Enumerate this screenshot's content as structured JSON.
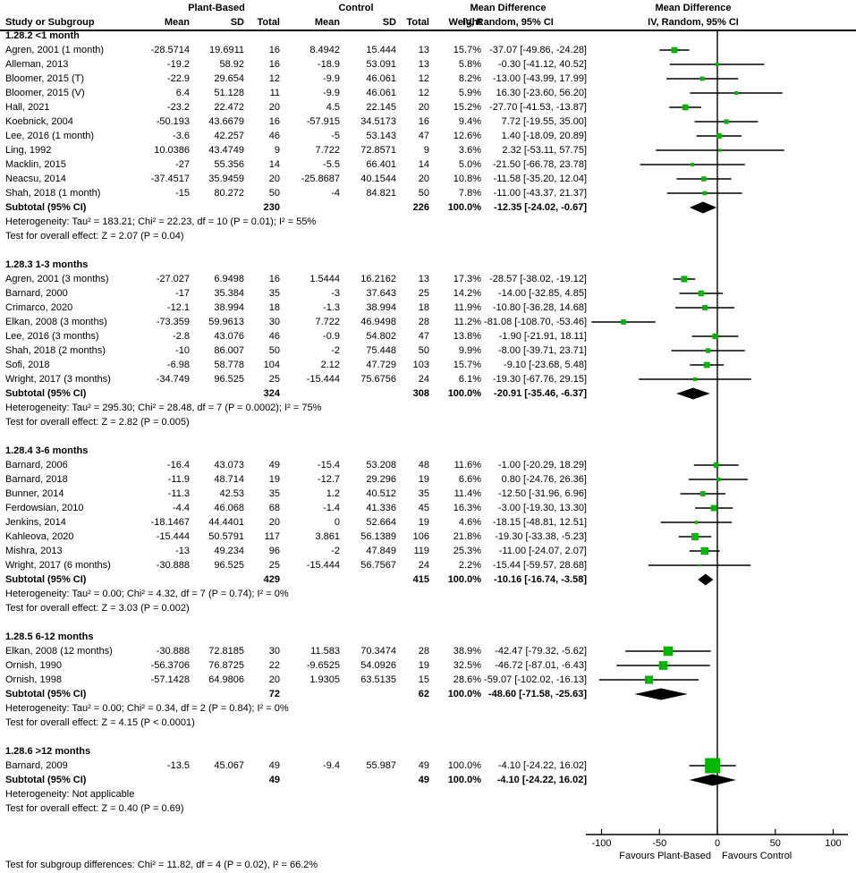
{
  "chart_data": {
    "type": "forest",
    "marker_color": "#00b800",
    "diamond_color": "#000000",
    "header": {
      "study_col": "Study or Subgroup",
      "group1": "Plant-Based",
      "group2": "Control",
      "mean": "Mean",
      "sd": "SD",
      "total": "Total",
      "weight": "Weight",
      "md_title": "Mean Difference",
      "md_sub": "IV, Random, 95% CI"
    },
    "axis": {
      "ticks": [
        -100,
        -50,
        0,
        50,
        100
      ],
      "xmin": -113,
      "xmax": 113,
      "favours_left": "Favours Plant-Based",
      "favours_right": "Favours Control"
    },
    "subgroups": [
      {
        "label": "1.28.2 <1 month",
        "studies": [
          {
            "name": "Agren, 2001 (1 month)",
            "mean1": "-28.5714",
            "sd1": "19.6911",
            "n1": "16",
            "mean2": "8.4942",
            "sd2": "15.444",
            "n2": "13",
            "weight": 15.7,
            "md": [
              -37.07,
              -49.86,
              -24.28
            ]
          },
          {
            "name": "Alleman, 2013",
            "mean1": "-19.2",
            "sd1": "58.92",
            "n1": "16",
            "mean2": "-18.9",
            "sd2": "53.091",
            "n2": "13",
            "weight": 5.8,
            "md": [
              -0.3,
              -41.12,
              40.52
            ]
          },
          {
            "name": "Bloomer, 2015 (T)",
            "mean1": "-22.9",
            "sd1": "29.654",
            "n1": "12",
            "mean2": "-9.9",
            "sd2": "46.061",
            "n2": "12",
            "weight": 8.2,
            "md": [
              -13.0,
              -43.99,
              17.99
            ]
          },
          {
            "name": "Bloomer, 2015 (V)",
            "mean1": "6.4",
            "sd1": "51.128",
            "n1": "11",
            "mean2": "-9.9",
            "sd2": "46.061",
            "n2": "12",
            "weight": 5.9,
            "md": [
              16.3,
              -23.6,
              56.2
            ]
          },
          {
            "name": "Hall, 2021",
            "mean1": "-23.2",
            "sd1": "22.472",
            "n1": "20",
            "mean2": "4.5",
            "sd2": "22.145",
            "n2": "20",
            "weight": 15.2,
            "md": [
              -27.7,
              -41.53,
              -13.87
            ]
          },
          {
            "name": "Koebnick, 2004",
            "mean1": "-50.193",
            "sd1": "43.6679",
            "n1": "16",
            "mean2": "-57.915",
            "sd2": "34.5173",
            "n2": "16",
            "weight": 9.4,
            "md": [
              7.72,
              -19.55,
              35.0
            ]
          },
          {
            "name": "Lee, 2016 (1 month)",
            "mean1": "-3.6",
            "sd1": "42.257",
            "n1": "46",
            "mean2": "-5",
            "sd2": "53.143",
            "n2": "47",
            "weight": 12.6,
            "md": [
              1.4,
              -18.09,
              20.89
            ]
          },
          {
            "name": "Ling, 1992",
            "mean1": "10.0386",
            "sd1": "43.4749",
            "n1": "9",
            "mean2": "7.722",
            "sd2": "72.8571",
            "n2": "9",
            "weight": 3.6,
            "md": [
              2.32,
              -53.11,
              57.75
            ]
          },
          {
            "name": "Macklin, 2015",
            "mean1": "-27",
            "sd1": "55.356",
            "n1": "14",
            "mean2": "-5.5",
            "sd2": "66.401",
            "n2": "14",
            "weight": 5.0,
            "md": [
              -21.5,
              -66.78,
              23.78
            ]
          },
          {
            "name": "Neacsu, 2014",
            "mean1": "-37.4517",
            "sd1": "35.9459",
            "n1": "20",
            "mean2": "-25.8687",
            "sd2": "40.1544",
            "n2": "20",
            "weight": 10.8,
            "md": [
              -11.58,
              -35.2,
              12.04
            ]
          },
          {
            "name": "Shah, 2018 (1 month)",
            "mean1": "-15",
            "sd1": "80.272",
            "n1": "50",
            "mean2": "-4",
            "sd2": "84.821",
            "n2": "50",
            "weight": 7.8,
            "md": [
              -11.0,
              -43.37,
              21.37
            ]
          }
        ],
        "subtotal": {
          "label": "Subtotal (95% CI)",
          "n1": "230",
          "n2": "226",
          "weight": 100.0,
          "md": [
            -12.35,
            -24.02,
            -0.67
          ]
        },
        "heterogeneity": "Heterogeneity: Tau² = 183.21; Chi² = 22.23, df = 10 (P = 0.01); I² = 55%",
        "test": "Test for overall effect: Z = 2.07 (P = 0.04)"
      },
      {
        "label": "1.28.3 1-3 months",
        "studies": [
          {
            "name": "Agren, 2001 (3 months)",
            "mean1": "-27.027",
            "sd1": "6.9498",
            "n1": "16",
            "mean2": "1.5444",
            "sd2": "16.2162",
            "n2": "13",
            "weight": 17.3,
            "md": [
              -28.57,
              -38.02,
              -19.12
            ]
          },
          {
            "name": "Barnard, 2000",
            "mean1": "-17",
            "sd1": "35.384",
            "n1": "35",
            "mean2": "-3",
            "sd2": "37.643",
            "n2": "25",
            "weight": 14.2,
            "md": [
              -14.0,
              -32.85,
              4.85
            ]
          },
          {
            "name": "Crimarco, 2020",
            "mean1": "-12.1",
            "sd1": "38.994",
            "n1": "18",
            "mean2": "-1.3",
            "sd2": "38.994",
            "n2": "18",
            "weight": 11.9,
            "md": [
              -10.8,
              -36.28,
              14.68
            ]
          },
          {
            "name": "Elkan, 2008 (3 months)",
            "mean1": "-73.359",
            "sd1": "59.9613",
            "n1": "30",
            "mean2": "7.722",
            "sd2": "46.9498",
            "n2": "28",
            "weight": 11.2,
            "md": [
              -81.08,
              -108.7,
              -53.46
            ]
          },
          {
            "name": "Lee, 2016 (3 months)",
            "mean1": "-2.8",
            "sd1": "43.076",
            "n1": "46",
            "mean2": "-0.9",
            "sd2": "54.802",
            "n2": "47",
            "weight": 13.8,
            "md": [
              -1.9,
              -21.91,
              18.11
            ]
          },
          {
            "name": "Shah, 2018 (2 months)",
            "mean1": "-10",
            "sd1": "86.007",
            "n1": "50",
            "mean2": "-2",
            "sd2": "75.448",
            "n2": "50",
            "weight": 9.9,
            "md": [
              -8.0,
              -39.71,
              23.71
            ]
          },
          {
            "name": "Sofi, 2018",
            "mean1": "-6.98",
            "sd1": "58.778",
            "n1": "104",
            "mean2": "2.12",
            "sd2": "47.729",
            "n2": "103",
            "weight": 15.7,
            "md": [
              -9.1,
              -23.68,
              5.48
            ]
          },
          {
            "name": "Wright, 2017 (3 months)",
            "mean1": "-34.749",
            "sd1": "96.525",
            "n1": "25",
            "mean2": "-15.444",
            "sd2": "75.6756",
            "n2": "24",
            "weight": 6.1,
            "md": [
              -19.3,
              -67.76,
              29.15
            ]
          }
        ],
        "subtotal": {
          "label": "Subtotal (95% CI)",
          "n1": "324",
          "n2": "308",
          "weight": 100.0,
          "md": [
            -20.91,
            -35.46,
            -6.37
          ]
        },
        "heterogeneity": "Heterogeneity: Tau² = 295.30; Chi² = 28.48, df = 7 (P = 0.0002); I² = 75%",
        "test": "Test for overall effect: Z = 2.82 (P = 0.005)"
      },
      {
        "label": "1.28.4 3-6 months",
        "studies": [
          {
            "name": "Barnard, 2006",
            "mean1": "-16.4",
            "sd1": "43.073",
            "n1": "49",
            "mean2": "-15.4",
            "sd2": "53.208",
            "n2": "48",
            "weight": 11.6,
            "md": [
              -1.0,
              -20.29,
              18.29
            ]
          },
          {
            "name": "Barnard, 2018",
            "mean1": "-11.9",
            "sd1": "48.714",
            "n1": "19",
            "mean2": "-12.7",
            "sd2": "29.296",
            "n2": "19",
            "weight": 6.6,
            "md": [
              0.8,
              -24.76,
              26.36
            ]
          },
          {
            "name": "Bunner, 2014",
            "mean1": "-11.3",
            "sd1": "42.53",
            "n1": "35",
            "mean2": "1.2",
            "sd2": "40.512",
            "n2": "35",
            "weight": 11.4,
            "md": [
              -12.5,
              -31.96,
              6.96
            ]
          },
          {
            "name": "Ferdowsian, 2010",
            "mean1": "-4.4",
            "sd1": "46.068",
            "n1": "68",
            "mean2": "-1.4",
            "sd2": "41.336",
            "n2": "45",
            "weight": 16.3,
            "md": [
              -3.0,
              -19.3,
              13.3
            ]
          },
          {
            "name": "Jenkins, 2014",
            "mean1": "-18.1467",
            "sd1": "44.4401",
            "n1": "20",
            "mean2": "0",
            "sd2": "52.664",
            "n2": "19",
            "weight": 4.6,
            "md": [
              -18.15,
              -48.81,
              12.51
            ]
          },
          {
            "name": "Kahleova, 2020",
            "mean1": "-15.444",
            "sd1": "50.5791",
            "n1": "117",
            "mean2": "3.861",
            "sd2": "56.1389",
            "n2": "106",
            "weight": 21.8,
            "md": [
              -19.3,
              -33.38,
              -5.23
            ]
          },
          {
            "name": "Mishra, 2013",
            "mean1": "-13",
            "sd1": "49.234",
            "n1": "96",
            "mean2": "-2",
            "sd2": "47.849",
            "n2": "119",
            "weight": 25.3,
            "md": [
              -11.0,
              -24.07,
              2.07
            ]
          },
          {
            "name": "Wright, 2017 (6 months)",
            "mean1": "-30.888",
            "sd1": "96.525",
            "n1": "25",
            "mean2": "-15.444",
            "sd2": "56.7567",
            "n2": "24",
            "weight": 2.2,
            "md": [
              -15.44,
              -59.57,
              28.68
            ]
          }
        ],
        "subtotal": {
          "label": "Subtotal (95% CI)",
          "n1": "429",
          "n2": "415",
          "weight": 100.0,
          "md": [
            -10.16,
            -16.74,
            -3.58
          ]
        },
        "heterogeneity": "Heterogeneity: Tau² = 0.00; Chi² = 4.32, df = 7 (P = 0.74); I² = 0%",
        "test": "Test for overall effect: Z = 3.03 (P = 0.002)"
      },
      {
        "label": "1.28.5 6-12 months",
        "studies": [
          {
            "name": "Elkan, 2008 (12 months)",
            "mean1": "-30.888",
            "sd1": "72.8185",
            "n1": "30",
            "mean2": "11.583",
            "sd2": "70.3474",
            "n2": "28",
            "weight": 38.9,
            "md": [
              -42.47,
              -79.32,
              -5.62
            ]
          },
          {
            "name": "Ornish, 1990",
            "mean1": "-56.3706",
            "sd1": "76.8725",
            "n1": "22",
            "mean2": "-9.6525",
            "sd2": "54.0926",
            "n2": "19",
            "weight": 32.5,
            "md": [
              -46.72,
              -87.01,
              -6.43
            ]
          },
          {
            "name": "Ornish, 1998",
            "mean1": "-57.1428",
            "sd1": "64.9806",
            "n1": "20",
            "mean2": "1.9305",
            "sd2": "63.5135",
            "n2": "15",
            "weight": 28.6,
            "md": [
              -59.07,
              -102.02,
              -16.13
            ]
          }
        ],
        "subtotal": {
          "label": "Subtotal (95% CI)",
          "n1": "72",
          "n2": "62",
          "weight": 100.0,
          "md": [
            -48.6,
            -71.58,
            -25.63
          ]
        },
        "heterogeneity": "Heterogeneity: Tau² = 0.00; Chi² = 0.34, df = 2 (P = 0.84); I² = 0%",
        "test": "Test for overall effect: Z = 4.15 (P < 0.0001)"
      },
      {
        "label": "1.28.6 >12 months",
        "studies": [
          {
            "name": "Barnard, 2009",
            "mean1": "-13.5",
            "sd1": "45.067",
            "n1": "49",
            "mean2": "-9.4",
            "sd2": "55.987",
            "n2": "49",
            "weight": 100.0,
            "md": [
              -4.1,
              -24.22,
              16.02
            ]
          }
        ],
        "subtotal": {
          "label": "Subtotal (95% CI)",
          "n1": "49",
          "n2": "49",
          "weight": 100.0,
          "md": [
            -4.1,
            -24.22,
            16.02
          ]
        },
        "heterogeneity": "Heterogeneity: Not applicable",
        "test": "Test for overall effect: Z = 0.40 (P = 0.69)"
      }
    ],
    "footer": "Test for subgroup differences: Chi² = 11.82, df = 4 (P = 0.02), I² = 66.2%"
  }
}
